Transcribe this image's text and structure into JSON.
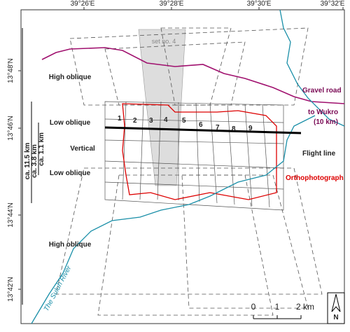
{
  "map": {
    "lon_labels": [
      "39°26'E",
      "39°28'E",
      "39°30'E",
      "39°32'E"
    ],
    "lat_labels": [
      "13°48'N",
      "13°46'N",
      "13°44'N",
      "13°42'N"
    ],
    "zones": [
      "High oblique",
      "Low oblique",
      "Vertical",
      "Low oblique",
      "High oblique"
    ],
    "extents": [
      "ca. 11.5 km",
      "ca. 3.8 km",
      "ca. 1.1 km"
    ],
    "set_label": "set no. 4",
    "road": [
      "Gravel road",
      "to Wukro",
      "(10 km)"
    ],
    "flight_line": "Flight line",
    "orthophoto": "Orthophotograph",
    "river": "The Suluh River",
    "photos": [
      "1",
      "2",
      "3",
      "4",
      "5",
      "6",
      "7",
      "8",
      "9"
    ],
    "scale": [
      "0",
      "1",
      "2 km"
    ],
    "north": "N"
  }
}
